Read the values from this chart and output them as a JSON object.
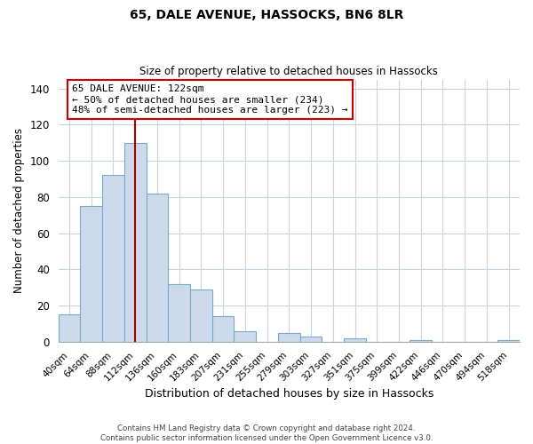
{
  "title": "65, DALE AVENUE, HASSOCKS, BN6 8LR",
  "subtitle": "Size of property relative to detached houses in Hassocks",
  "xlabel": "Distribution of detached houses by size in Hassocks",
  "ylabel": "Number of detached properties",
  "bar_labels": [
    "40sqm",
    "64sqm",
    "88sqm",
    "112sqm",
    "136sqm",
    "160sqm",
    "183sqm",
    "207sqm",
    "231sqm",
    "255sqm",
    "279sqm",
    "303sqm",
    "327sqm",
    "351sqm",
    "375sqm",
    "399sqm",
    "422sqm",
    "446sqm",
    "470sqm",
    "494sqm",
    "518sqm"
  ],
  "bar_values": [
    15,
    75,
    92,
    110,
    82,
    32,
    29,
    14,
    6,
    0,
    5,
    3,
    0,
    2,
    0,
    0,
    1,
    0,
    0,
    0,
    1
  ],
  "bar_color": "#ccdaeb",
  "bar_edge_color": "#7aaac8",
  "vline_color": "#aa0000",
  "annotation_text": "65 DALE AVENUE: 122sqm\n← 50% of detached houses are smaller (234)\n48% of semi-detached houses are larger (223) →",
  "annotation_box_color": "#ffffff",
  "annotation_box_edge": "#cc0000",
  "ylim": [
    0,
    145
  ],
  "yticks": [
    0,
    20,
    40,
    60,
    80,
    100,
    120,
    140
  ],
  "footnote": "Contains HM Land Registry data © Crown copyright and database right 2024.\nContains public sector information licensed under the Open Government Licence v3.0.",
  "bg_color": "#ffffff",
  "grid_color": "#c8d4e0"
}
